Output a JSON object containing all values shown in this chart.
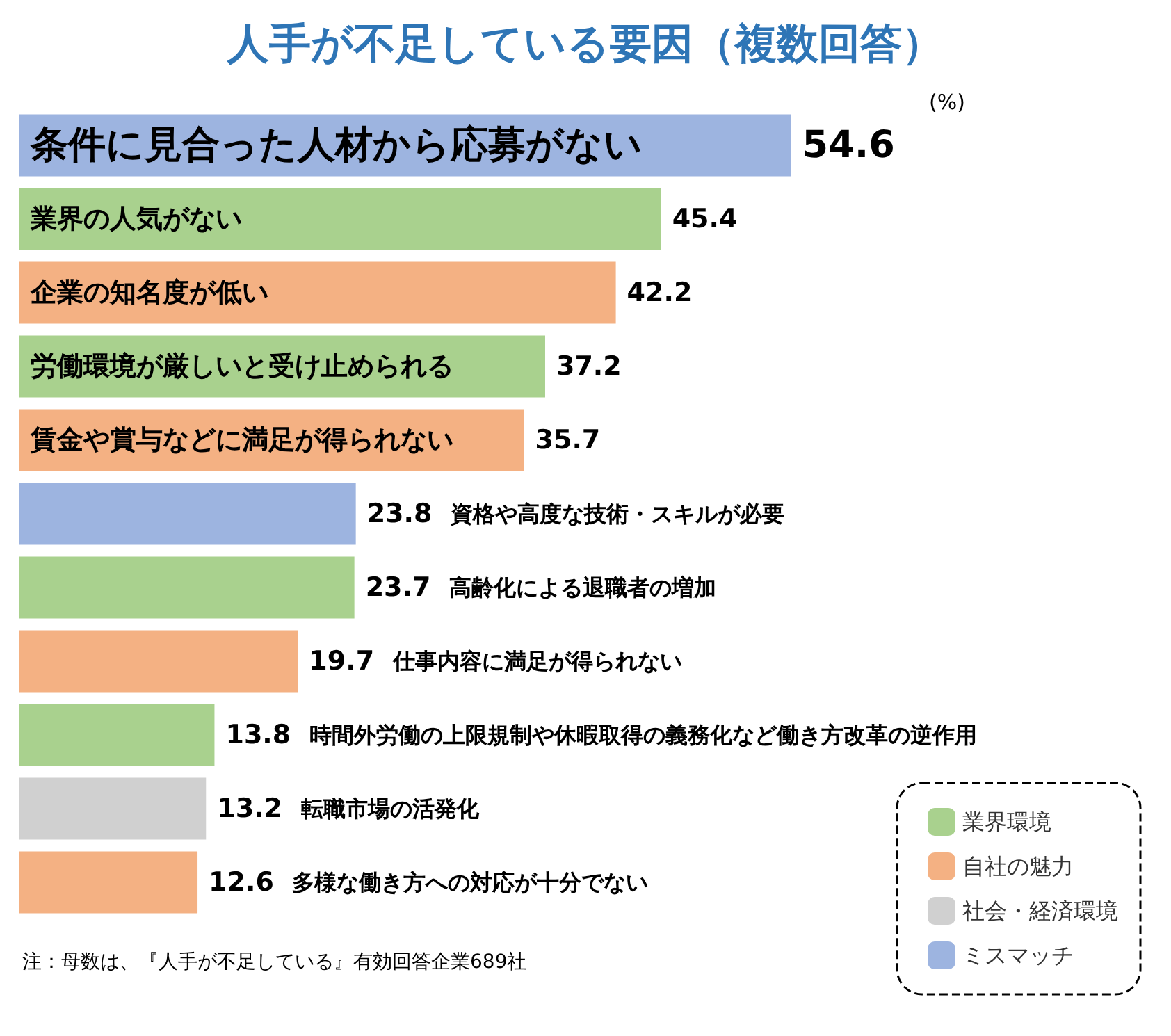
{
  "chart_data": {
    "type": "bar",
    "orientation": "horizontal",
    "title": "人手が不足している要因（複数回答）",
    "categories": [
      "条件に見合った人材から応募がない",
      "業界の人気がない",
      "企業の知名度が低い",
      "労働環境が厳しいと受け止められる",
      "賃金や賞与などに満足が得られない",
      "資格や高度な技術・スキルが必要",
      "高齢化による退職者の増加",
      "仕事内容に満足が得られない",
      "時間外労働の上限規制や休暇取得の義務化など働き方改革の逆作用",
      "転職市場の活発化",
      "多様な働き方への対応が十分でない"
    ],
    "series": [
      {
        "name": "業界環境",
        "color": "#a9d18e",
        "values": [
          null,
          45.4,
          null,
          37.2,
          null,
          null,
          23.7,
          null,
          13.8,
          null,
          null
        ]
      },
      {
        "name": "自社の魅力",
        "color": "#f4b183",
        "values": [
          null,
          null,
          42.2,
          null,
          35.7,
          null,
          null,
          19.7,
          null,
          null,
          12.6
        ]
      },
      {
        "name": "社会・経済環境",
        "color": "#d0d0d0",
        "values": [
          null,
          null,
          null,
          null,
          null,
          null,
          null,
          null,
          null,
          13.2,
          null
        ]
      },
      {
        "name": "ミスマッチ",
        "color": "#9db4e0",
        "values": [
          54.6,
          null,
          null,
          null,
          null,
          23.8,
          null,
          null,
          null,
          null,
          null
        ]
      }
    ],
    "tick_labels": false,
    "data_labels": true,
    "legend": "bottom right",
    "annotations": [
      "(%)",
      "注：母数は、『人手が不足している』有効回答企業689社"
    ]
  }
}
